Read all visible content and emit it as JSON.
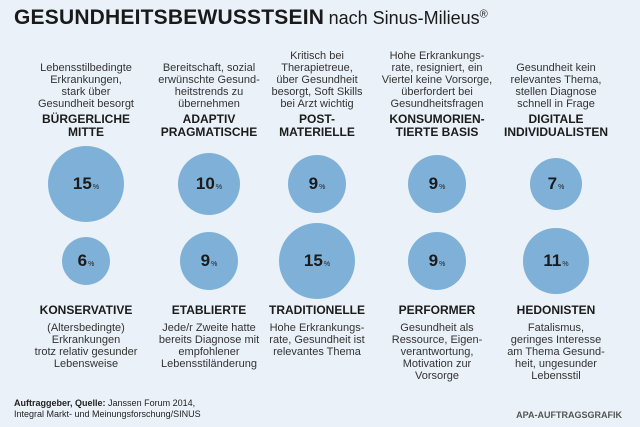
{
  "title": {
    "main": "GESUNDHEITSBEWUSSTSEIN",
    "sub": "nach Sinus-Milieus",
    "mark": "®"
  },
  "percent_symbol": "%",
  "chart_data": {
    "type": "bubble",
    "title": "GESUNDHEITSBEWUSSTSEIN nach Sinus-Milieus®",
    "unit": "%",
    "top_row": [
      {
        "name": "BÜRGERLICHE\nMITTE",
        "value": 15,
        "description": "Lebensstilbedingte\nErkrankungen,\nstark über\nGesundheit besorgt"
      },
      {
        "name": "ADAPTIV\nPRAGMATISCHE",
        "value": 10,
        "description": "Bereitschaft, sozial\nerwünschte Gesund-\nheitstrends zu\nübernehmen"
      },
      {
        "name": "POST-\nMATERIELLE",
        "value": 9,
        "description": "Kritisch bei\nTherapietreue,\nüber Gesundheit\nbesorgt, Soft Skills\nbei Arzt wichtig"
      },
      {
        "name": "KONSUMORIEN-\nTIERTE BASIS",
        "value": 9,
        "description": "Hohe Erkrankungs-\nrate, resigniert, ein\nViertel keine Vorsorge,\nüberfordert bei\nGesundheitsfragen"
      },
      {
        "name": "DIGITALE\nINDIVIDUALISTEN",
        "value": 7,
        "description": "Gesundheit kein\nrelevantes Thema,\nstellen Diagnose\nschnell in Frage"
      }
    ],
    "bottom_row": [
      {
        "name": "KONSERVATIVE",
        "value": 6,
        "description": "(Altersbedingte)\nErkrankungen\ntrotz relativ gesunder\nLebensweise"
      },
      {
        "name": "ETABLIERTE",
        "value": 9,
        "description": "Jede/r Zweite hatte\nbereits Diagnose mit\nempfohlener\nLebensstiländerung"
      },
      {
        "name": "TRADITIONELLE",
        "value": 15,
        "description": "Hohe Erkrankungs-\nrate, Gesundheit ist\nrelevantes Thema"
      },
      {
        "name": "PERFORMER",
        "value": 9,
        "description": "Gesundheit als\nRessource, Eigen-\nverantwortung,\nMotivation zur\nVorsorge"
      },
      {
        "name": "HEDONISTEN",
        "value": 11,
        "description": "Fatalismus,\ngeringes Interesse\nam Thema Gesund-\nheit, ungesunder\nLebensstil"
      }
    ]
  },
  "footer": {
    "label": "Auftraggeber, Quelle:",
    "line1": "Janssen Forum 2014,",
    "line2": "Integral Markt- und Meinungsforschung/SINUS"
  },
  "credit": "APA-AUFTRAGSGRAFIK",
  "colors": {
    "background": "#eaf1f8",
    "bubble": "#7fb1d8",
    "text": "#1b1b1b"
  }
}
